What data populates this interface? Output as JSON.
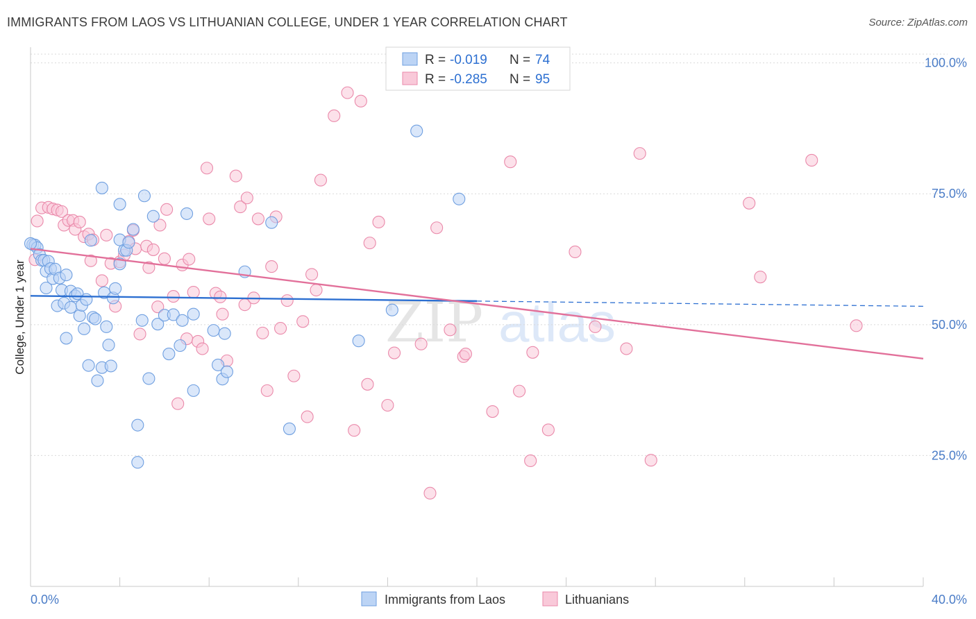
{
  "title": "IMMIGRANTS FROM LAOS VS LITHUANIAN COLLEGE, UNDER 1 YEAR CORRELATION CHART",
  "source": "Source: ZipAtlas.com",
  "watermark": {
    "zip": "ZIP",
    "atlas": "atlas"
  },
  "colors": {
    "blue_fill": "#bcd4f5",
    "blue_stroke": "#6f9fe0",
    "blue_line": "#2c6fd1",
    "pink_fill": "#f9c9d9",
    "pink_stroke": "#ea89aa",
    "pink_line": "#e2709a",
    "tick_text": "#4a7cc7",
    "grid": "#d9d9d9"
  },
  "chart_data": {
    "type": "scatter",
    "ylabel": "College, Under 1 year",
    "xlim": [
      0,
      40
    ],
    "ylim": [
      0,
      103
    ],
    "x_ticks": [
      {
        "value": 0,
        "label": "0.0%"
      },
      {
        "value": 40,
        "label": "40.0%"
      }
    ],
    "y_ticks": [
      {
        "value": 25,
        "label": "25.0%"
      },
      {
        "value": 50,
        "label": "50.0%"
      },
      {
        "value": 75,
        "label": "75.0%"
      },
      {
        "value": 100,
        "label": "100.0%"
      }
    ],
    "legend": [
      {
        "r_label": "R =",
        "r_value": "-0.019",
        "n_label": "N =",
        "n_value": "74"
      },
      {
        "r_label": "R =",
        "r_value": "-0.285",
        "n_label": "N =",
        "n_value": "95"
      }
    ],
    "series": [
      {
        "name": "Immigrants from Laos",
        "color": "blue",
        "trend": {
          "x0": 0,
          "y0": 55.5,
          "x1": 40,
          "y1": 53.5,
          "solid_until": 20
        },
        "points": [
          [
            0.1,
            65.3
          ],
          [
            0.2,
            65.2
          ],
          [
            0.3,
            64.7
          ],
          [
            0.4,
            63.4
          ],
          [
            0.5,
            62.3
          ],
          [
            0.6,
            62.3
          ],
          [
            0.7,
            60.2
          ],
          [
            0.7,
            57.0
          ],
          [
            0.8,
            62.1
          ],
          [
            0.9,
            60.7
          ],
          [
            1.0,
            58.8
          ],
          [
            1.1,
            60.6
          ],
          [
            1.2,
            53.6
          ],
          [
            1.3,
            58.9
          ],
          [
            1.4,
            56.6
          ],
          [
            1.5,
            54.1
          ],
          [
            1.6,
            59.5
          ],
          [
            1.6,
            47.4
          ],
          [
            1.8,
            53.3
          ],
          [
            1.8,
            56.4
          ],
          [
            2.0,
            55.5
          ],
          [
            2.1,
            55.9
          ],
          [
            2.2,
            51.7
          ],
          [
            2.3,
            53.7
          ],
          [
            2.4,
            49.2
          ],
          [
            2.5,
            54.8
          ],
          [
            2.6,
            42.2
          ],
          [
            2.7,
            66.1
          ],
          [
            2.8,
            51.4
          ],
          [
            2.9,
            51.1
          ],
          [
            3.0,
            39.3
          ],
          [
            3.2,
            41.8
          ],
          [
            3.2,
            76.1
          ],
          [
            3.3,
            56.1
          ],
          [
            3.4,
            49.6
          ],
          [
            3.5,
            46.1
          ],
          [
            3.6,
            42.1
          ],
          [
            3.7,
            55.1
          ],
          [
            3.8,
            56.9
          ],
          [
            4.0,
            66.2
          ],
          [
            4.0,
            73.0
          ],
          [
            4.0,
            61.6
          ],
          [
            4.2,
            64.2
          ],
          [
            4.3,
            64.2
          ],
          [
            4.4,
            65.7
          ],
          [
            4.6,
            68.2
          ],
          [
            4.8,
            23.7
          ],
          [
            4.8,
            30.8
          ],
          [
            5.0,
            50.8
          ],
          [
            5.1,
            74.6
          ],
          [
            5.3,
            39.7
          ],
          [
            5.5,
            70.7
          ],
          [
            5.7,
            50.1
          ],
          [
            6.0,
            51.8
          ],
          [
            6.2,
            44.4
          ],
          [
            6.4,
            51.9
          ],
          [
            6.7,
            46.0
          ],
          [
            6.8,
            50.8
          ],
          [
            7.0,
            71.2
          ],
          [
            7.3,
            52.0
          ],
          [
            7.3,
            37.4
          ],
          [
            8.2,
            48.9
          ],
          [
            8.4,
            42.3
          ],
          [
            8.6,
            39.6
          ],
          [
            8.7,
            48.3
          ],
          [
            8.8,
            41.0
          ],
          [
            9.6,
            60.1
          ],
          [
            10.8,
            69.5
          ],
          [
            11.6,
            30.1
          ],
          [
            14.7,
            46.9
          ],
          [
            16.2,
            52.8
          ],
          [
            17.3,
            87.0
          ],
          [
            19.2,
            74.0
          ],
          [
            0.0,
            65.5
          ]
        ]
      },
      {
        "name": "Lithuanians",
        "color": "pink",
        "trend": {
          "x0": 0,
          "y0": 64.5,
          "x1": 40,
          "y1": 43.5
        },
        "points": [
          [
            0.2,
            62.4
          ],
          [
            0.3,
            69.8
          ],
          [
            0.5,
            72.3
          ],
          [
            0.8,
            72.4
          ],
          [
            1.0,
            72.1
          ],
          [
            1.2,
            71.9
          ],
          [
            1.4,
            71.6
          ],
          [
            1.5,
            69.0
          ],
          [
            1.7,
            69.9
          ],
          [
            1.9,
            69.9
          ],
          [
            2.0,
            68.2
          ],
          [
            2.2,
            69.6
          ],
          [
            2.4,
            66.8
          ],
          [
            2.6,
            67.3
          ],
          [
            2.7,
            62.2
          ],
          [
            2.8,
            66.2
          ],
          [
            3.2,
            58.4
          ],
          [
            3.4,
            67.1
          ],
          [
            3.6,
            61.7
          ],
          [
            3.8,
            53.5
          ],
          [
            4.0,
            62.0
          ],
          [
            4.2,
            63.3
          ],
          [
            4.4,
            65.9
          ],
          [
            4.6,
            68.0
          ],
          [
            4.7,
            64.5
          ],
          [
            4.9,
            48.2
          ],
          [
            5.2,
            65.0
          ],
          [
            5.3,
            60.9
          ],
          [
            5.5,
            64.3
          ],
          [
            5.7,
            53.4
          ],
          [
            5.8,
            69.0
          ],
          [
            6.0,
            62.6
          ],
          [
            6.1,
            72.0
          ],
          [
            6.4,
            55.4
          ],
          [
            6.6,
            34.9
          ],
          [
            6.8,
            61.4
          ],
          [
            7.0,
            47.3
          ],
          [
            7.1,
            62.5
          ],
          [
            7.3,
            56.2
          ],
          [
            7.5,
            46.8
          ],
          [
            7.7,
            45.4
          ],
          [
            7.9,
            79.9
          ],
          [
            8.0,
            70.2
          ],
          [
            8.3,
            56.0
          ],
          [
            8.5,
            55.3
          ],
          [
            8.6,
            52.0
          ],
          [
            8.8,
            43.1
          ],
          [
            9.2,
            78.4
          ],
          [
            9.4,
            72.5
          ],
          [
            9.6,
            53.8
          ],
          [
            9.7,
            74.2
          ],
          [
            10.0,
            55.1
          ],
          [
            10.2,
            70.2
          ],
          [
            10.4,
            48.4
          ],
          [
            10.6,
            37.4
          ],
          [
            10.8,
            61.1
          ],
          [
            11.0,
            70.6
          ],
          [
            11.2,
            49.3
          ],
          [
            11.5,
            54.6
          ],
          [
            11.8,
            40.2
          ],
          [
            12.2,
            50.6
          ],
          [
            12.4,
            32.4
          ],
          [
            12.6,
            59.6
          ],
          [
            12.8,
            56.6
          ],
          [
            13.0,
            77.6
          ],
          [
            13.6,
            89.9
          ],
          [
            14.2,
            94.3
          ],
          [
            14.5,
            29.8
          ],
          [
            14.8,
            92.7
          ],
          [
            15.1,
            38.6
          ],
          [
            15.2,
            65.6
          ],
          [
            15.6,
            69.6
          ],
          [
            16.0,
            34.6
          ],
          [
            16.3,
            44.6
          ],
          [
            17.5,
            46.3
          ],
          [
            17.9,
            17.8
          ],
          [
            18.2,
            68.5
          ],
          [
            18.8,
            49.0
          ],
          [
            19.4,
            43.9
          ],
          [
            19.5,
            44.4
          ],
          [
            20.7,
            33.4
          ],
          [
            21.5,
            81.1
          ],
          [
            21.9,
            37.3
          ],
          [
            22.4,
            24.0
          ],
          [
            22.5,
            44.7
          ],
          [
            23.2,
            29.9
          ],
          [
            24.4,
            63.9
          ],
          [
            25.3,
            49.6
          ],
          [
            26.7,
            45.4
          ],
          [
            27.3,
            82.7
          ],
          [
            27.8,
            24.1
          ],
          [
            32.2,
            73.2
          ],
          [
            32.7,
            59.1
          ],
          [
            35.0,
            81.4
          ],
          [
            37.0,
            49.8
          ]
        ]
      }
    ]
  },
  "bottom_legend": [
    "Immigrants from Laos",
    "Lithuanians"
  ]
}
